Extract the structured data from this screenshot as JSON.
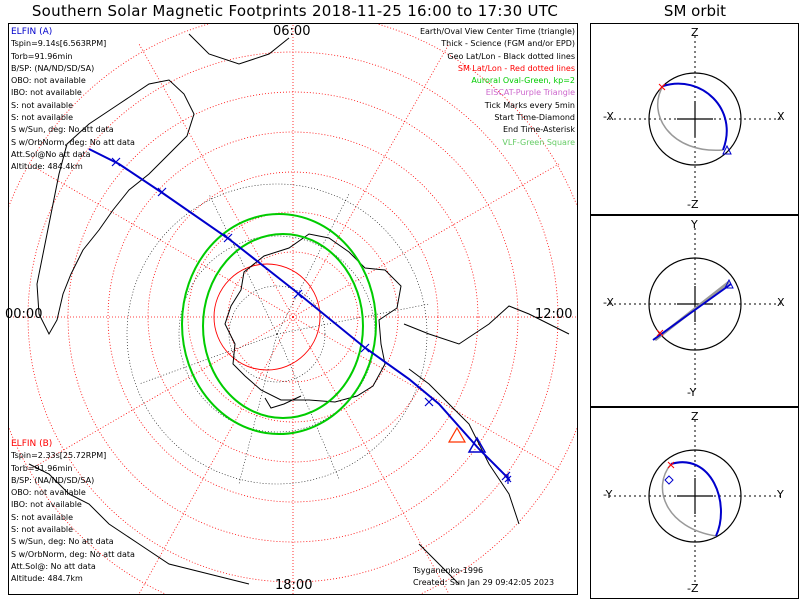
{
  "title": "Southern Solar Magnetic Footprints 2018-11-25 16:00 to 17:30 UTC",
  "sm_orbit_title": "SM orbit",
  "clock_labels": {
    "top": "06:00",
    "left": "00:00",
    "right": "12:00",
    "bottom": "18:00"
  },
  "elfin_a": {
    "name": "ELFIN (A)",
    "color": "#0000cc",
    "lines": [
      "Tspin=9.14s[6.563RPM]",
      "Torb=91.96min",
      "B/SP: (NA/ND/SD/SA)",
      "OBO: not available",
      "IBO: not available",
      "S: not available",
      "S: not available",
      "S w/Sun, deg: No att data",
      "S w/OrbNorm, deg: No att data",
      "Att.Sol@No att data",
      "Altitude: 484.4km"
    ]
  },
  "elfin_b": {
    "name": "ELFIN (B)",
    "color": "#ff0000",
    "lines": [
      "Tspin=2.33s[25.72RPM]",
      "Torb=91.96min",
      "B/SP: (NA/ND/SD/SA)",
      "OBO: not available",
      "IBO: not available",
      "S: not available",
      "S: not available",
      "S w/Sun, deg: No att data",
      "S w/OrbNorm, deg: No att data",
      "Att.Sol@: No att data",
      "Altitude: 484.7km"
    ]
  },
  "legend": [
    {
      "text": "Earth/Oval View Center Time (triangle)",
      "color": "#000000"
    },
    {
      "text": "Thick - Science (FGM and/or EPD)",
      "color": "#000000"
    },
    {
      "text": "Geo Lat/Lon - Black dotted lines",
      "color": "#000000"
    },
    {
      "text": "SM Lat/Lon - Red dotted lines",
      "color": "#ff0000"
    },
    {
      "text": "Auroral Oval-Green, kp=2",
      "color": "#00cc00"
    },
    {
      "text": "EISCAT-Purple Triangle",
      "color": "#cc66cc"
    },
    {
      "text": "Tick Marks every 5min",
      "color": "#000000"
    },
    {
      "text": "Start Time-Diamond",
      "color": "#000000"
    },
    {
      "text": "End Time-Asterisk",
      "color": "#000000"
    },
    {
      "text": "VLF-Green Square",
      "color": "#66cc66"
    }
  ],
  "credit": "Tsyganenko-1996",
  "created": "Created: Sun Jan 29 09:42:05 2023",
  "orbit_panels": [
    {
      "top": "Z",
      "bottom": "-Z",
      "left": "-X",
      "right": "X"
    },
    {
      "top": "Y",
      "bottom": "-Y",
      "left": "-X",
      "right": "X"
    },
    {
      "top": "Z",
      "bottom": "-Z",
      "left": "-Y",
      "right": "Y"
    }
  ],
  "colors": {
    "sm_grid": "#ff0000",
    "oval": "#00cc00",
    "track": "#0000cc",
    "orbit_b": "#999999"
  }
}
